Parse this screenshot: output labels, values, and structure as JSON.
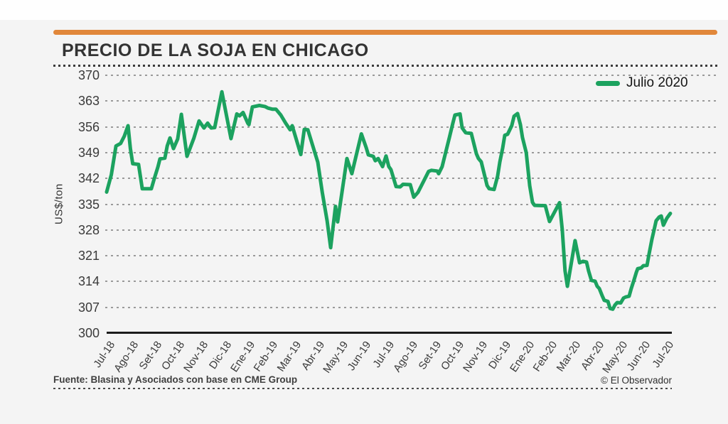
{
  "header": {
    "title": "PRECIO DE LA SOJA EN CHICAGO",
    "accent_color": "#E1873A"
  },
  "footer": {
    "source": "Fuente: Blasina y Asociados con base en CME Group",
    "credit": "© El Observador"
  },
  "chart_data": {
    "type": "line",
    "title": "PRECIO DE LA SOJA EN CHICAGO",
    "xlabel": "",
    "ylabel": "US$/ton",
    "ylim": [
      300,
      370
    ],
    "y_ticks": [
      370,
      363,
      356,
      349,
      342,
      335,
      328,
      321,
      314,
      307,
      300
    ],
    "x_labels": [
      "Jul-18",
      "Ago-18",
      "Set-18",
      "Oct-18",
      "Nov-18",
      "Dic-18",
      "Ene-19",
      "Feb-19",
      "Mar-19",
      "Abr-19",
      "May-19",
      "Jun-19",
      "Jul-19",
      "Ago-19",
      "Set-19",
      "Oct-19",
      "Nov-19",
      "Dic-19",
      "Ene-20",
      "Feb-20",
      "Mar-20",
      "Abr-20",
      "May-20",
      "Jun-20",
      "Jul-20"
    ],
    "grid": "horizontal-dotted",
    "legend": {
      "label": "Julio 2020",
      "position": "top-right",
      "line_color": "#1CA25F"
    },
    "series": [
      {
        "name": "Julio 2020",
        "color": "#1CA25F",
        "x_unit": "months-since-Jul-18",
        "points": [
          [
            0.0,
            338.3
          ],
          [
            0.2,
            343.0
          ],
          [
            0.4,
            350.8
          ],
          [
            0.6,
            351.5
          ],
          [
            0.76,
            353.5
          ],
          [
            0.92,
            356.3
          ],
          [
            1.02,
            350.1
          ],
          [
            1.12,
            346.0
          ],
          [
            1.37,
            345.8
          ],
          [
            1.53,
            339.2
          ],
          [
            1.92,
            339.2
          ],
          [
            2.05,
            342.0
          ],
          [
            2.2,
            345.1
          ],
          [
            2.29,
            347.3
          ],
          [
            2.5,
            347.5
          ],
          [
            2.6,
            350.8
          ],
          [
            2.72,
            353.0
          ],
          [
            2.87,
            350.1
          ],
          [
            3.05,
            352.7
          ],
          [
            3.21,
            359.4
          ],
          [
            3.45,
            348.0
          ],
          [
            3.75,
            353.0
          ],
          [
            3.97,
            357.6
          ],
          [
            4.18,
            355.7
          ],
          [
            4.34,
            357.0
          ],
          [
            4.49,
            355.7
          ],
          [
            4.64,
            355.8
          ],
          [
            4.95,
            365.5
          ],
          [
            5.34,
            352.8
          ],
          [
            5.59,
            359.5
          ],
          [
            5.71,
            359.0
          ],
          [
            5.86,
            359.9
          ],
          [
            6.06,
            357.0
          ],
          [
            6.11,
            356.6
          ],
          [
            6.26,
            361.4
          ],
          [
            6.56,
            361.8
          ],
          [
            6.81,
            361.5
          ],
          [
            6.93,
            361.1
          ],
          [
            7.11,
            360.8
          ],
          [
            7.27,
            360.8
          ],
          [
            7.48,
            359.2
          ],
          [
            7.69,
            357.0
          ],
          [
            7.88,
            355.2
          ],
          [
            7.97,
            356.3
          ],
          [
            8.34,
            348.5
          ],
          [
            8.49,
            355.3
          ],
          [
            8.64,
            355.2
          ],
          [
            9.07,
            346.4
          ],
          [
            9.26,
            338.2
          ],
          [
            9.47,
            330.5
          ],
          [
            9.62,
            323.2
          ],
          [
            9.83,
            334.4
          ],
          [
            9.92,
            330.2
          ],
          [
            10.32,
            347.4
          ],
          [
            10.53,
            343.3
          ],
          [
            10.94,
            354.1
          ],
          [
            11.15,
            350.3
          ],
          [
            11.24,
            348.4
          ],
          [
            11.45,
            348.0
          ],
          [
            11.54,
            346.8
          ],
          [
            11.66,
            347.4
          ],
          [
            11.85,
            345.2
          ],
          [
            12.0,
            348.1
          ],
          [
            12.12,
            345.2
          ],
          [
            12.21,
            344.4
          ],
          [
            12.43,
            339.8
          ],
          [
            12.61,
            339.7
          ],
          [
            12.73,
            340.4
          ],
          [
            13.04,
            340.3
          ],
          [
            13.19,
            336.9
          ],
          [
            13.37,
            338.2
          ],
          [
            13.83,
            343.9
          ],
          [
            13.95,
            344.2
          ],
          [
            14.2,
            344.0
          ],
          [
            14.26,
            343.3
          ],
          [
            14.41,
            345.2
          ],
          [
            14.56,
            349.0
          ],
          [
            14.72,
            353.1
          ],
          [
            14.87,
            357.0
          ],
          [
            14.96,
            359.2
          ],
          [
            15.18,
            359.5
          ],
          [
            15.27,
            355.7
          ],
          [
            15.42,
            354.4
          ],
          [
            15.66,
            354.2
          ],
          [
            15.88,
            348.7
          ],
          [
            15.97,
            347.4
          ],
          [
            16.09,
            346.5
          ],
          [
            16.24,
            342.6
          ],
          [
            16.34,
            340.1
          ],
          [
            16.43,
            339.2
          ],
          [
            16.64,
            339.0
          ],
          [
            16.79,
            342.6
          ],
          [
            16.89,
            346.5
          ],
          [
            17.01,
            350.3
          ],
          [
            17.1,
            353.7
          ],
          [
            17.22,
            354.0
          ],
          [
            17.4,
            356.3
          ],
          [
            17.5,
            358.9
          ],
          [
            17.65,
            359.6
          ],
          [
            17.77,
            356.6
          ],
          [
            17.86,
            353.1
          ],
          [
            18.02,
            349.0
          ],
          [
            18.17,
            340.0
          ],
          [
            18.29,
            335.5
          ],
          [
            18.38,
            334.7
          ],
          [
            18.84,
            334.6
          ],
          [
            19.02,
            330.3
          ],
          [
            19.45,
            335.4
          ],
          [
            19.57,
            328.0
          ],
          [
            19.69,
            316.9
          ],
          [
            19.79,
            312.7
          ],
          [
            20.12,
            325.1
          ],
          [
            20.31,
            319.1
          ],
          [
            20.46,
            319.5
          ],
          [
            20.61,
            319.3
          ],
          [
            20.7,
            316.9
          ],
          [
            20.82,
            314.3
          ],
          [
            20.98,
            314.1
          ],
          [
            21.07,
            312.7
          ],
          [
            21.16,
            312.1
          ],
          [
            21.28,
            310.2
          ],
          [
            21.37,
            308.9
          ],
          [
            21.53,
            308.6
          ],
          [
            21.62,
            306.7
          ],
          [
            21.74,
            306.5
          ],
          [
            21.83,
            307.6
          ],
          [
            21.93,
            308.3
          ],
          [
            22.08,
            308.2
          ],
          [
            22.2,
            309.5
          ],
          [
            22.29,
            309.8
          ],
          [
            22.44,
            310.0
          ],
          [
            22.53,
            312.1
          ],
          [
            22.66,
            314.6
          ],
          [
            22.75,
            316.5
          ],
          [
            22.81,
            317.5
          ],
          [
            22.96,
            317.7
          ],
          [
            23.05,
            318.3
          ],
          [
            23.21,
            318.4
          ],
          [
            23.3,
            321.6
          ],
          [
            23.42,
            325.5
          ],
          [
            23.51,
            328.0
          ],
          [
            23.6,
            330.5
          ],
          [
            23.73,
            331.5
          ],
          [
            23.82,
            331.8
          ],
          [
            23.91,
            329.3
          ],
          [
            24.06,
            331.2
          ],
          [
            24.21,
            332.5
          ]
        ]
      }
    ]
  }
}
